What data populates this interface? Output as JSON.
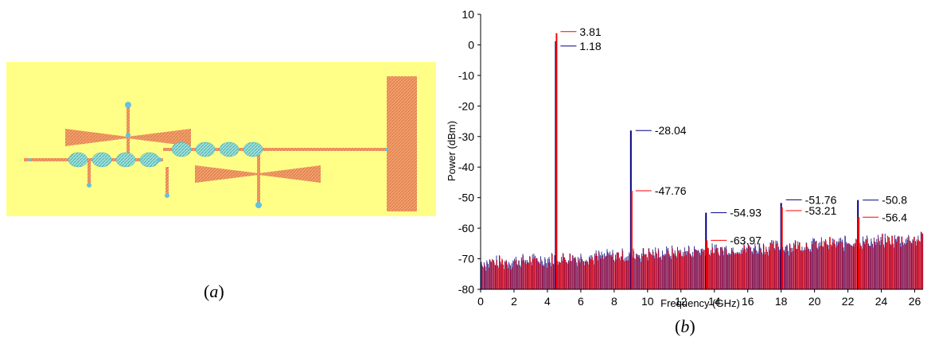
{
  "captions": {
    "a": "(a)",
    "b": "(b)"
  },
  "chart_data": {
    "type": "bar",
    "xlabel": "Frequency (GHz)",
    "ylabel": "Power (dBm)",
    "xlim": [
      0,
      26.5
    ],
    "ylim": [
      -80,
      10
    ],
    "xticks": [
      0,
      2,
      4,
      6,
      8,
      10,
      12,
      14,
      16,
      18,
      20,
      22,
      24,
      26
    ],
    "yticks": [
      10,
      0,
      -10,
      -20,
      -30,
      -40,
      -50,
      -60,
      -70,
      -80
    ],
    "colors": {
      "red_series": "#ff0000",
      "blue_series": "#000080"
    },
    "grid": false,
    "peaks": [
      {
        "x": 4.5,
        "red": 3.81,
        "blue": 1.18
      },
      {
        "x": 9.0,
        "red": -47.76,
        "blue": -28.04
      },
      {
        "x": 13.5,
        "red": -63.97,
        "blue": -54.93
      },
      {
        "x": 18.0,
        "red": -53.21,
        "blue": -51.76
      },
      {
        "x": 22.6,
        "red": -56.4,
        "blue": -50.8
      }
    ],
    "noise_floor": {
      "start": -71,
      "end": -63
    },
    "annotations": [
      {
        "text": "3.81",
        "x": 4.5,
        "y": 3.81,
        "color": "red"
      },
      {
        "text": "1.18",
        "x": 4.5,
        "y": 1.18,
        "color": "blue"
      },
      {
        "text": "-28.04",
        "x": 9.0,
        "y": -28.04,
        "color": "blue"
      },
      {
        "text": "-47.76",
        "x": 9.0,
        "y": -47.76,
        "color": "red"
      },
      {
        "text": "-54.93",
        "x": 13.5,
        "y": -54.93,
        "color": "blue"
      },
      {
        "text": "-63.97",
        "x": 13.5,
        "y": -63.97,
        "color": "red"
      },
      {
        "text": "-51.76",
        "x": 18.0,
        "y": -51.76,
        "color": "blue"
      },
      {
        "text": "-53.21",
        "x": 18.0,
        "y": -53.21,
        "color": "red"
      },
      {
        "text": "-50.8",
        "x": 22.6,
        "y": -50.8,
        "color": "blue"
      },
      {
        "text": "-56.4",
        "x": 22.6,
        "y": -56.4,
        "color": "red"
      }
    ]
  },
  "layout_colors": {
    "substrate": "#ffff80",
    "metal": "#f4a460",
    "via": "#87ceeb"
  }
}
